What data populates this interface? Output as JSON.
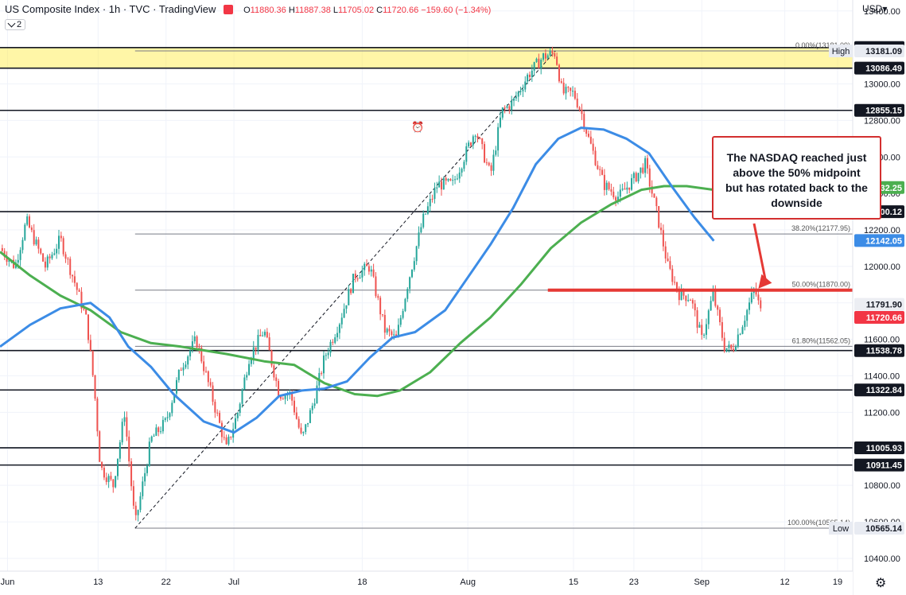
{
  "header": {
    "title": "US Composite Index · 1h · TVC · TradingView",
    "open_label": "O",
    "open": "11880.36",
    "high_label": "H",
    "high": "11887.38",
    "low_label": "L",
    "low": "11705.02",
    "close_label": "C",
    "close": "11720.66",
    "change": "−159.60 (−1.34%)",
    "indicator_count": "2",
    "currency": "USD"
  },
  "colors": {
    "up": "#26a69a",
    "down": "#ef5350",
    "ma_blue": "#3c8ce6",
    "ma_green": "#4caf50",
    "zone": "#ffeb3b",
    "callout_border": "#d32f2f",
    "red_level": "#e53935"
  },
  "annotation": {
    "text_lines": [
      "The NASDAQ reached just",
      "above the 50% midpoint",
      "but has rotated back to the",
      "downside"
    ]
  },
  "chart_data": {
    "type": "candlestick",
    "title": "US Composite Index",
    "xlabel": "",
    "ylabel": "",
    "x_ticks": [
      {
        "label": "Jun",
        "day": 1
      },
      {
        "label": "13",
        "day": 13
      },
      {
        "label": "22",
        "day": 22
      },
      {
        "label": "Jul",
        "day": 31
      },
      {
        "label": "18",
        "day": 48
      },
      {
        "label": "Aug",
        "day": 62
      },
      {
        "label": "15",
        "day": 76
      },
      {
        "label": "23",
        "day": 84
      },
      {
        "label": "Sep",
        "day": 93
      },
      {
        "label": "12",
        "day": 104
      },
      {
        "label": "19",
        "day": 111
      }
    ],
    "x_range_days": [
      0,
      113
    ],
    "y_range": [
      10330,
      13460
    ],
    "y_ticks": [
      10400,
      10600,
      10800,
      11000,
      11200,
      11400,
      11600,
      11800,
      12000,
      12200,
      12400,
      12600,
      12800,
      13000,
      13200,
      13400
    ],
    "price_labels": [
      {
        "value": 13199.37,
        "text": "13199.37",
        "style": "dark"
      },
      {
        "value": 13181.09,
        "text": "13181.09",
        "style": "light",
        "tag": "High"
      },
      {
        "value": 13086.49,
        "text": "13086.49",
        "style": "dark"
      },
      {
        "value": 12855.15,
        "text": "12855.15",
        "style": "dark"
      },
      {
        "value": 12432.25,
        "text": "12432.25",
        "style": "green"
      },
      {
        "value": 12300.12,
        "text": "12300.12",
        "style": "dark"
      },
      {
        "value": 12142.05,
        "text": "12142.05",
        "style": "blue"
      },
      {
        "value": 11791.9,
        "text": "11791.90",
        "style": "grey"
      },
      {
        "value": 11720.66,
        "text": "11720.66",
        "style": "red"
      },
      {
        "value": 11538.78,
        "text": "11538.78",
        "style": "dark"
      },
      {
        "value": 11322.84,
        "text": "11322.84",
        "style": "dark"
      },
      {
        "value": 11005.93,
        "text": "11005.93",
        "style": "dark"
      },
      {
        "value": 10911.45,
        "text": "10911.45",
        "style": "dark"
      },
      {
        "value": 10565.14,
        "text": "10565.14",
        "style": "light",
        "tag": "Low"
      }
    ],
    "horizontal_levels": [
      13199.37,
      13086.49,
      12855.15,
      12300.12,
      11538.78,
      11322.84,
      11005.93,
      10911.45
    ],
    "zone": {
      "from": 13086.49,
      "to": 13199.37
    },
    "fibonacci": {
      "from_day": 17.9,
      "to_day": 116,
      "levels": [
        {
          "ratio": "0.00%",
          "value": 13181.09,
          "text": "0.00%(13181.09)"
        },
        {
          "ratio": "38.20%",
          "value": 12177.95,
          "text": "38.20%(12177.95)"
        },
        {
          "ratio": "50.00%",
          "value": 11870.0,
          "text": "50.00%(11870.00)"
        },
        {
          "ratio": "61.80%",
          "value": 11562.05,
          "text": "61.80%(11562.05)"
        },
        {
          "ratio": "100.00%",
          "value": 10565.14,
          "text": "100.00%(10565.14)"
        }
      ]
    },
    "trendline": {
      "from": {
        "day": 17.9,
        "value": 10565.14
      },
      "to": {
        "day": 73.6,
        "value": 13181.09
      }
    },
    "red_level": {
      "value": 11870.0,
      "from_day": 72.6,
      "to_day": 115
    },
    "blue_ma": [
      {
        "day": 0,
        "value": 11560
      },
      {
        "day": 4,
        "value": 11680
      },
      {
        "day": 8,
        "value": 11770
      },
      {
        "day": 12,
        "value": 11800
      },
      {
        "day": 14.5,
        "value": 11720
      },
      {
        "day": 17,
        "value": 11560
      },
      {
        "day": 20,
        "value": 11450
      },
      {
        "day": 23,
        "value": 11300
      },
      {
        "day": 27,
        "value": 11150
      },
      {
        "day": 31,
        "value": 11090
      },
      {
        "day": 34,
        "value": 11170
      },
      {
        "day": 37,
        "value": 11290
      },
      {
        "day": 40,
        "value": 11320
      },
      {
        "day": 43,
        "value": 11330
      },
      {
        "day": 46,
        "value": 11370
      },
      {
        "day": 49,
        "value": 11500
      },
      {
        "day": 52,
        "value": 11610
      },
      {
        "day": 55,
        "value": 11640
      },
      {
        "day": 59,
        "value": 11760
      },
      {
        "day": 62,
        "value": 11940
      },
      {
        "day": 65,
        "value": 12120
      },
      {
        "day": 68,
        "value": 12320
      },
      {
        "day": 71,
        "value": 12560
      },
      {
        "day": 74,
        "value": 12700
      },
      {
        "day": 77,
        "value": 12760
      },
      {
        "day": 80,
        "value": 12750
      },
      {
        "day": 83,
        "value": 12700
      },
      {
        "day": 86,
        "value": 12620
      },
      {
        "day": 89,
        "value": 12440
      },
      {
        "day": 92,
        "value": 12270
      },
      {
        "day": 94.6,
        "value": 12140
      }
    ],
    "green_ma": [
      {
        "day": 0,
        "value": 12080
      },
      {
        "day": 4,
        "value": 11950
      },
      {
        "day": 8,
        "value": 11840
      },
      {
        "day": 12,
        "value": 11760
      },
      {
        "day": 16,
        "value": 11640
      },
      {
        "day": 20,
        "value": 11580
      },
      {
        "day": 24,
        "value": 11560
      },
      {
        "day": 30,
        "value": 11520
      },
      {
        "day": 35,
        "value": 11480
      },
      {
        "day": 39,
        "value": 11460
      },
      {
        "day": 43,
        "value": 11360
      },
      {
        "day": 47,
        "value": 11300
      },
      {
        "day": 50,
        "value": 11290
      },
      {
        "day": 53,
        "value": 11320
      },
      {
        "day": 57,
        "value": 11420
      },
      {
        "day": 61,
        "value": 11580
      },
      {
        "day": 65,
        "value": 11720
      },
      {
        "day": 69,
        "value": 11900
      },
      {
        "day": 73,
        "value": 12100
      },
      {
        "day": 77,
        "value": 12240
      },
      {
        "day": 81,
        "value": 12340
      },
      {
        "day": 85,
        "value": 12420
      },
      {
        "day": 88,
        "value": 12440
      },
      {
        "day": 91,
        "value": 12440
      },
      {
        "day": 94.6,
        "value": 12420
      }
    ],
    "price_path": [
      {
        "day": 0,
        "value": 12100
      },
      {
        "day": 2,
        "value": 12000
      },
      {
        "day": 3.5,
        "value": 12250
      },
      {
        "day": 6,
        "value": 12000
      },
      {
        "day": 8,
        "value": 12150
      },
      {
        "day": 10,
        "value": 11900
      },
      {
        "day": 11.5,
        "value": 11700
      },
      {
        "day": 12.5,
        "value": 11330
      },
      {
        "day": 13.3,
        "value": 10900
      },
      {
        "day": 15,
        "value": 10800
      },
      {
        "day": 16.5,
        "value": 11200
      },
      {
        "day": 17.9,
        "value": 10580
      },
      {
        "day": 20,
        "value": 11050
      },
      {
        "day": 22,
        "value": 11150
      },
      {
        "day": 24,
        "value": 11450
      },
      {
        "day": 26,
        "value": 11600
      },
      {
        "day": 28,
        "value": 11300
      },
      {
        "day": 30,
        "value": 11000
      },
      {
        "day": 31.5,
        "value": 11200
      },
      {
        "day": 33,
        "value": 11500
      },
      {
        "day": 35,
        "value": 11650
      },
      {
        "day": 37,
        "value": 11300
      },
      {
        "day": 38.5,
        "value": 11300
      },
      {
        "day": 40,
        "value": 11050
      },
      {
        "day": 41.5,
        "value": 11250
      },
      {
        "day": 43,
        "value": 11500
      },
      {
        "day": 45,
        "value": 11700
      },
      {
        "day": 47,
        "value": 11950
      },
      {
        "day": 49,
        "value": 12000
      },
      {
        "day": 51,
        "value": 11650
      },
      {
        "day": 52.5,
        "value": 11600
      },
      {
        "day": 54,
        "value": 11900
      },
      {
        "day": 56,
        "value": 12250
      },
      {
        "day": 58,
        "value": 12450
      },
      {
        "day": 60,
        "value": 12450
      },
      {
        "day": 61.5,
        "value": 12600
      },
      {
        "day": 63,
        "value": 12750
      },
      {
        "day": 65,
        "value": 12500
      },
      {
        "day": 66.5,
        "value": 12850
      },
      {
        "day": 68,
        "value": 12900
      },
      {
        "day": 70,
        "value": 13050
      },
      {
        "day": 72,
        "value": 13150
      },
      {
        "day": 73.6,
        "value": 13170
      },
      {
        "day": 74.5,
        "value": 12950
      },
      {
        "day": 76,
        "value": 12950
      },
      {
        "day": 77,
        "value": 12850
      },
      {
        "day": 78,
        "value": 12700
      },
      {
        "day": 80,
        "value": 12450
      },
      {
        "day": 82,
        "value": 12380
      },
      {
        "day": 84,
        "value": 12480
      },
      {
        "day": 85.5,
        "value": 12560
      },
      {
        "day": 87,
        "value": 12300
      },
      {
        "day": 88.5,
        "value": 12000
      },
      {
        "day": 90,
        "value": 11850
      },
      {
        "day": 91.5,
        "value": 11830
      },
      {
        "day": 93,
        "value": 11600
      },
      {
        "day": 94.5,
        "value": 11850
      },
      {
        "day": 96,
        "value": 11560
      },
      {
        "day": 97,
        "value": 11540
      },
      {
        "day": 98.5,
        "value": 11700
      },
      {
        "day": 100,
        "value": 11880
      },
      {
        "day": 101,
        "value": 11720
      }
    ]
  }
}
